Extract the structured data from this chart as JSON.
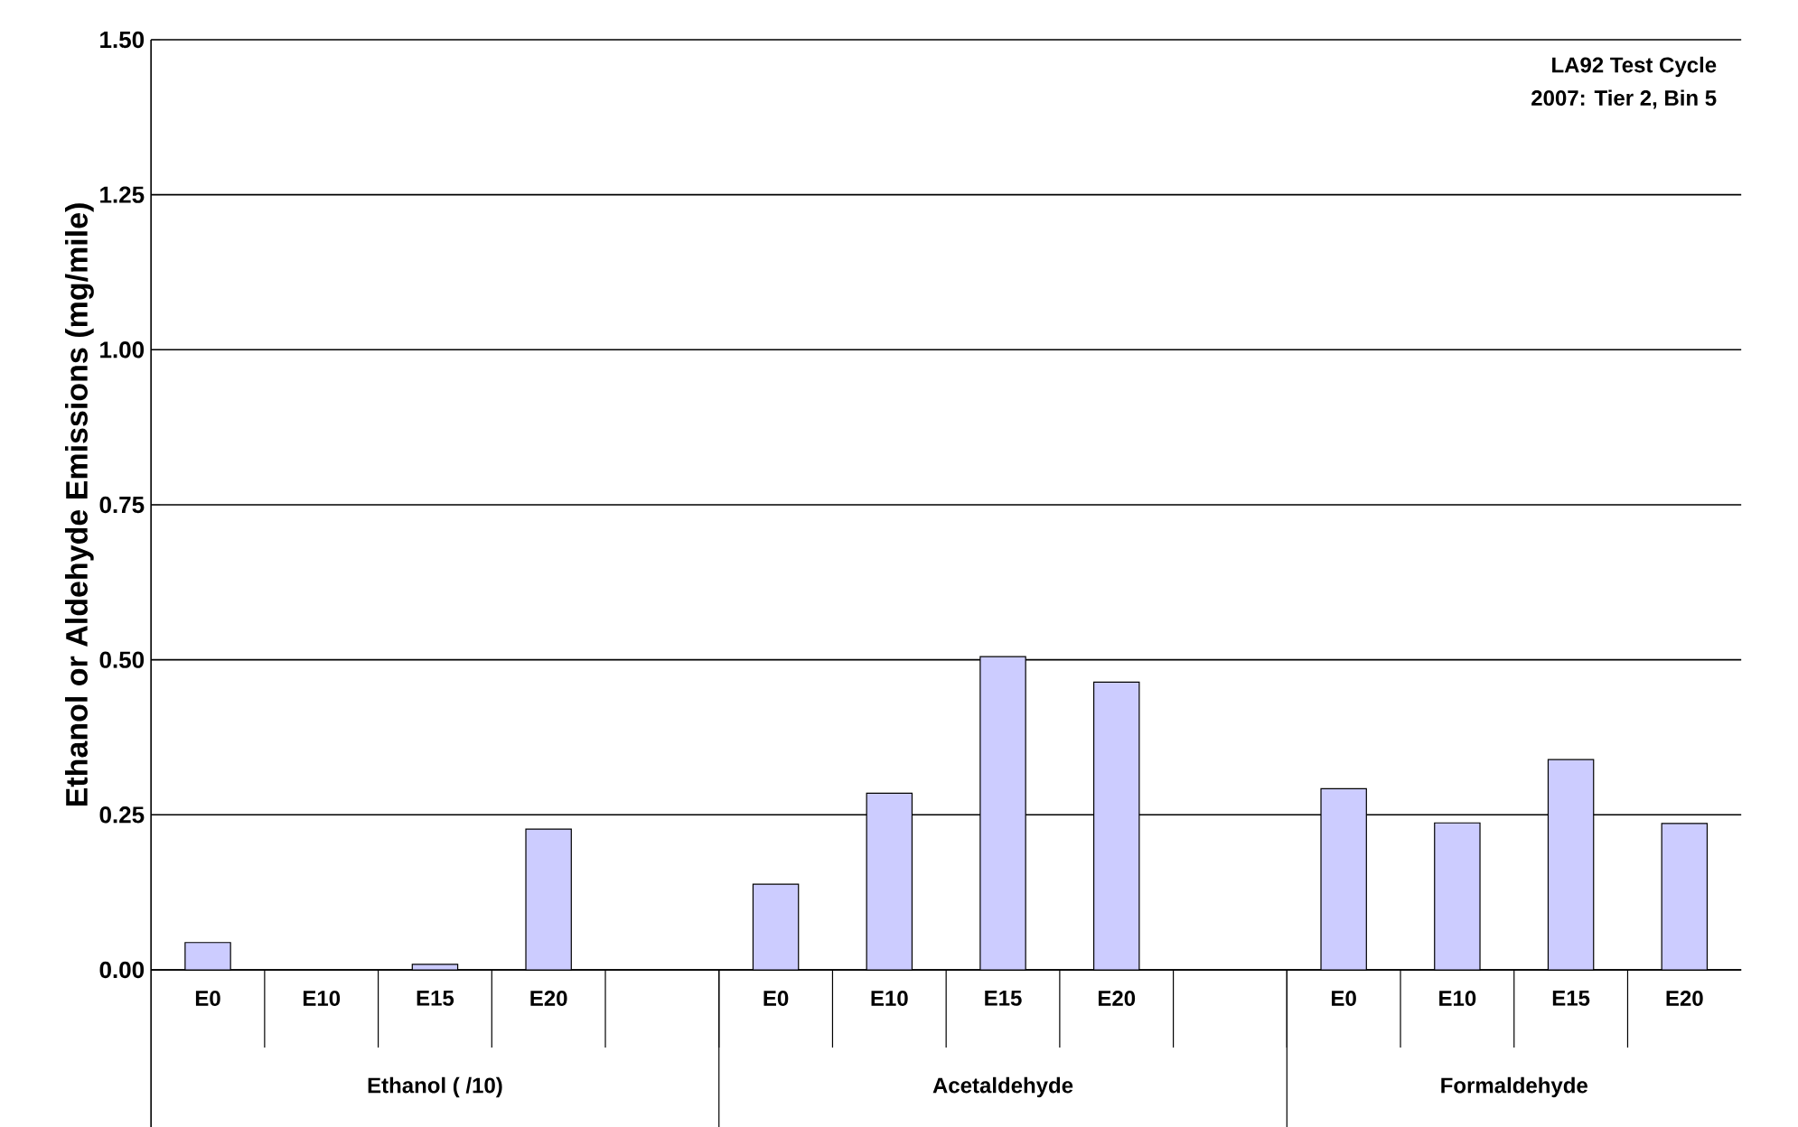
{
  "chart_data": {
    "type": "bar",
    "ylabel": "Ethanol or Aldehyde Emissions (mg/mile)",
    "categories": [
      "E0",
      "E10",
      "E15",
      "E20",
      null,
      "E0",
      "E10",
      "E15",
      "E20",
      null,
      "E0",
      "E10",
      "E15",
      "E20"
    ],
    "values": [
      0.044,
      null,
      0.009,
      0.227,
      null,
      0.138,
      0.285,
      0.505,
      0.464,
      null,
      0.292,
      0.237,
      0.339,
      0.236
    ],
    "color": "#ccccff",
    "ylim": [
      0,
      1.5
    ],
    "yticks": [
      {
        "value": 0,
        "label": "0.00"
      },
      {
        "value": 0.25,
        "label": "0.25"
      },
      {
        "value": 0.5,
        "label": "0.50"
      },
      {
        "value": 0.75,
        "label": "0.75"
      },
      {
        "value": 1.0,
        "label": "1.00"
      },
      {
        "value": 1.25,
        "label": "1.25"
      },
      {
        "value": 1.5,
        "label": "1.50"
      }
    ],
    "grid": "y",
    "annotations": [
      "LA92 Test Cycle",
      "2007: Tier 2, Bin 5",
      "Ethanol ( /10)",
      "Acetaldehyde",
      "Formaldehyde"
    ]
  }
}
